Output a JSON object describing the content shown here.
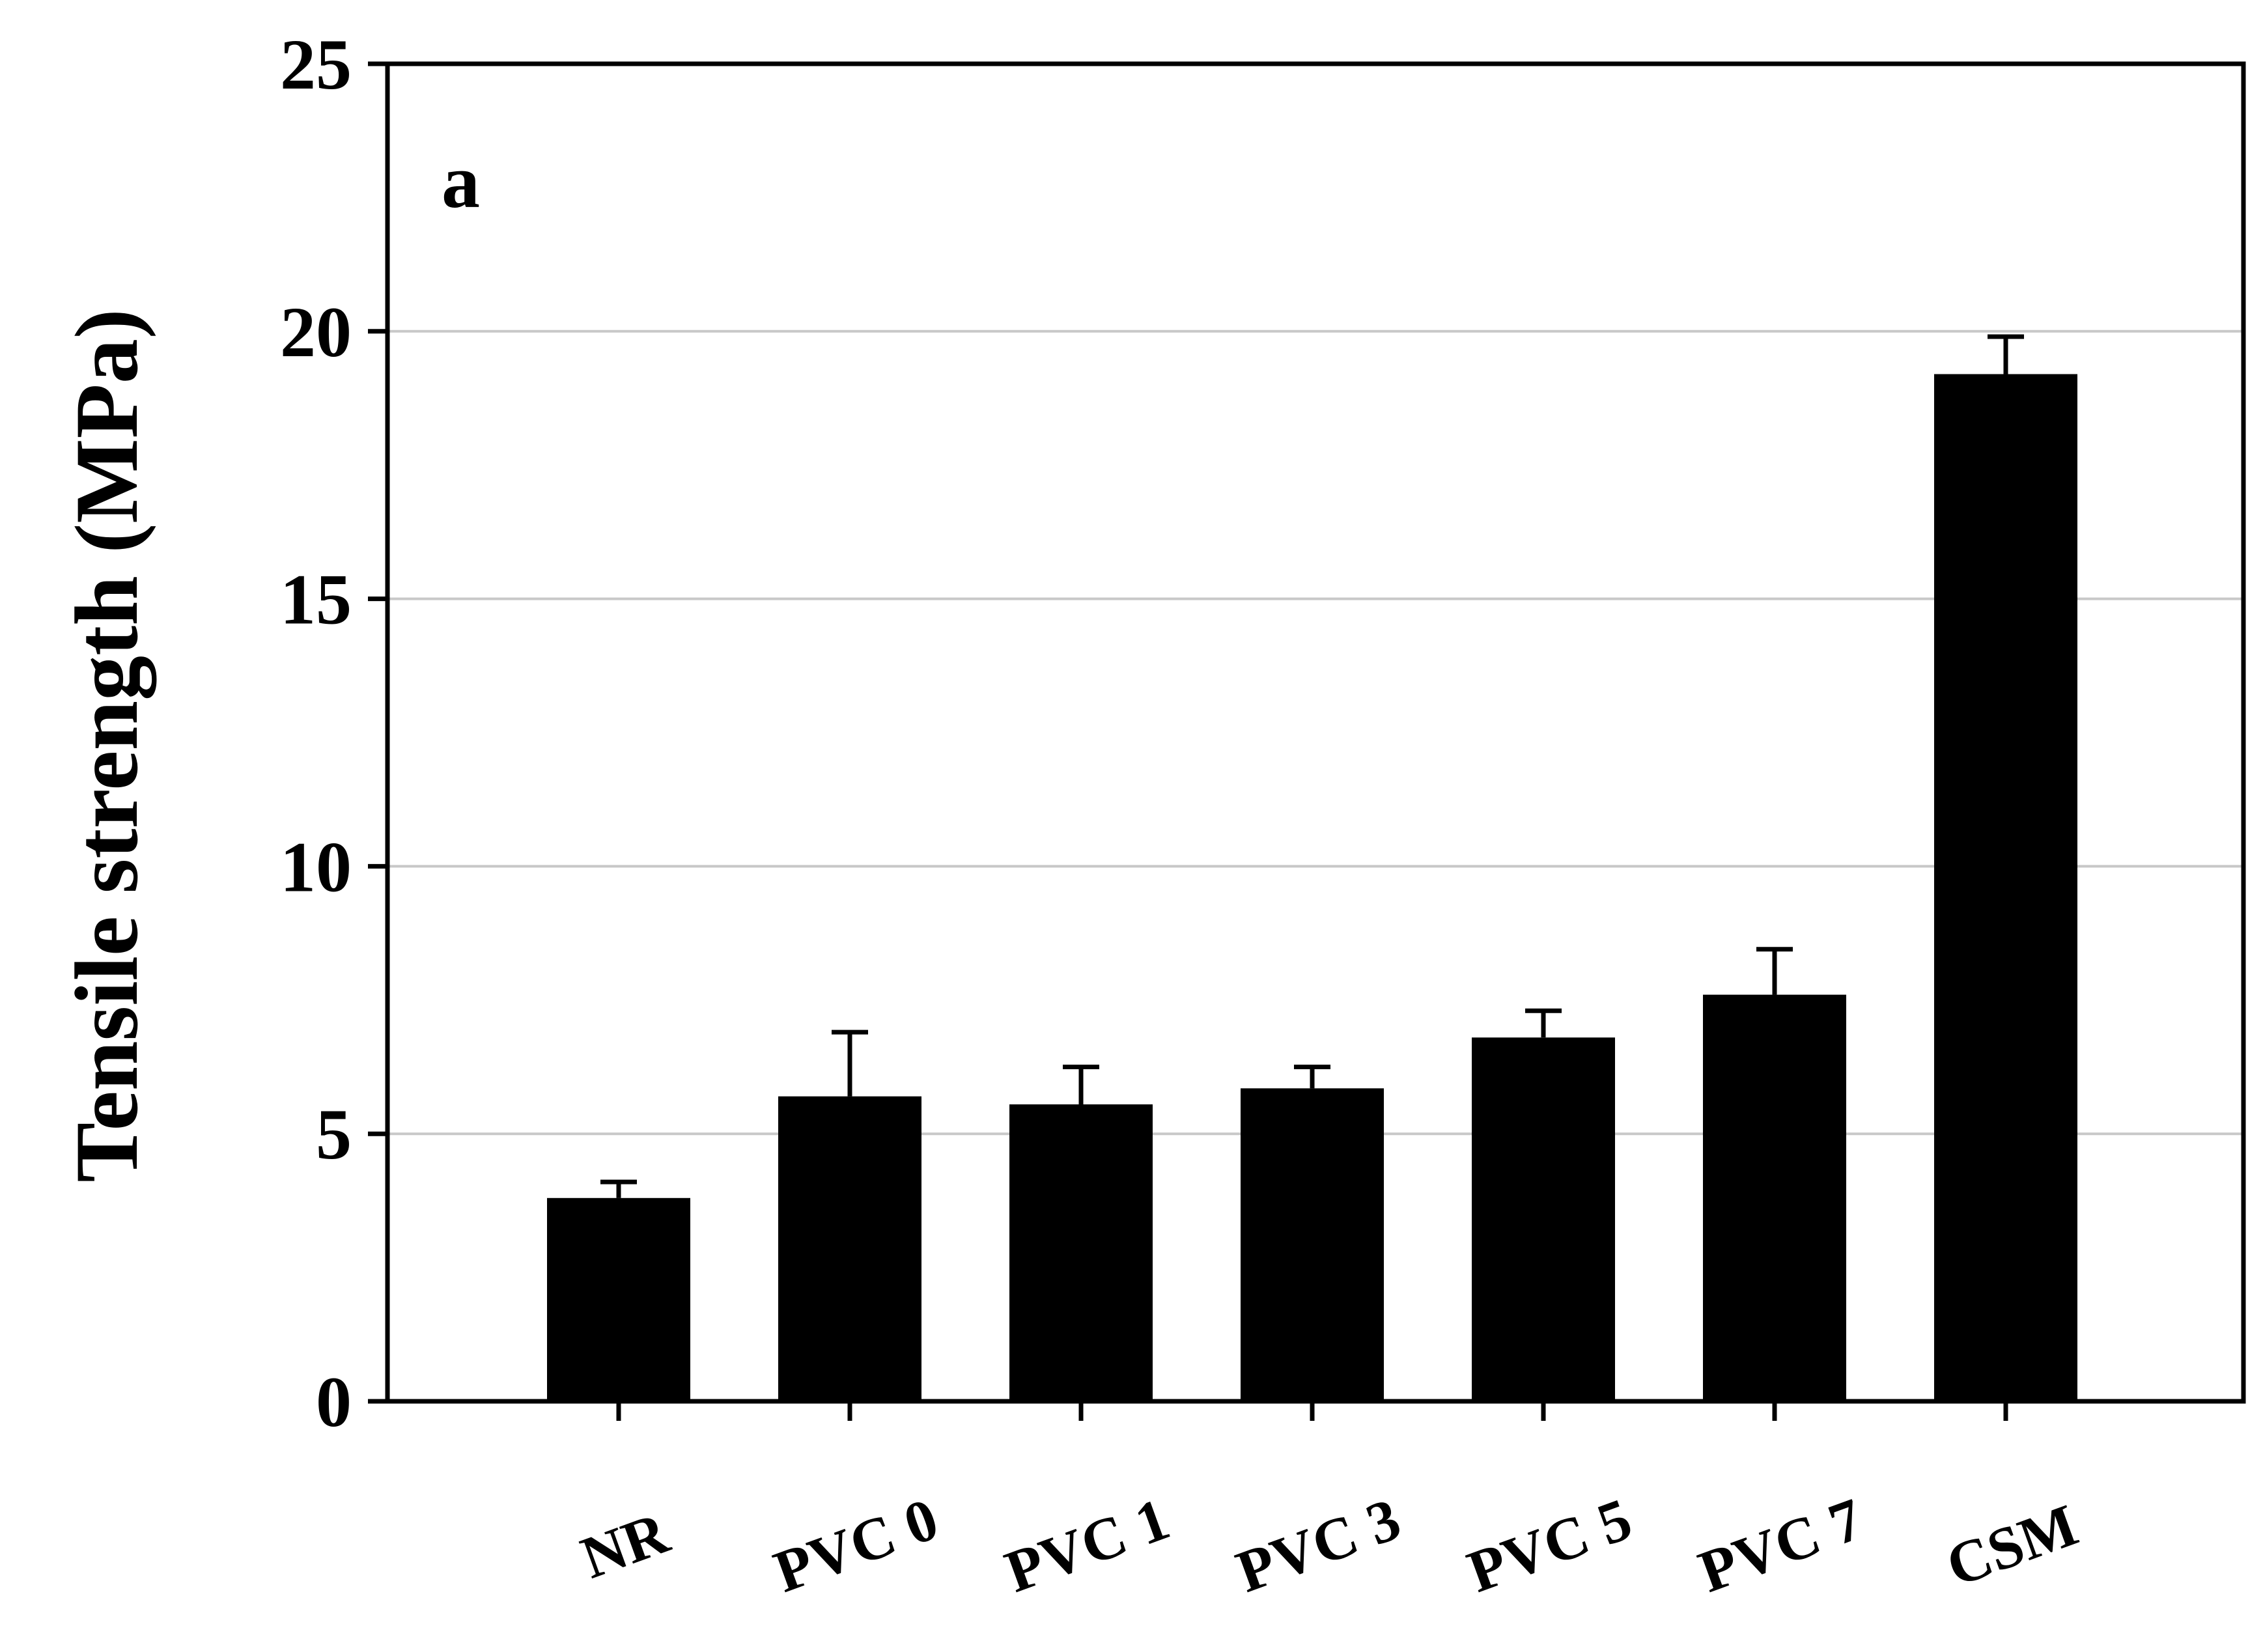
{
  "chart_data": {
    "type": "bar",
    "panel_label": "a",
    "categories": [
      "NR",
      "PVC 0",
      "PVC 1",
      "PVC 3",
      "PVC 5",
      "PVC 7",
      "CSM"
    ],
    "values": [
      3.8,
      5.7,
      5.55,
      5.85,
      6.8,
      7.6,
      19.2
    ],
    "error_plus": [
      0.3,
      1.2,
      0.7,
      0.4,
      0.5,
      0.85,
      0.7
    ],
    "ylabel": "Tensile strength (MPa)",
    "xlabel": "",
    "ylim": [
      0,
      25
    ],
    "yticks": [
      0,
      5,
      10,
      15,
      20,
      25
    ],
    "grid": true,
    "bar_color": "#000000",
    "grid_color": "#c8c8c8"
  }
}
